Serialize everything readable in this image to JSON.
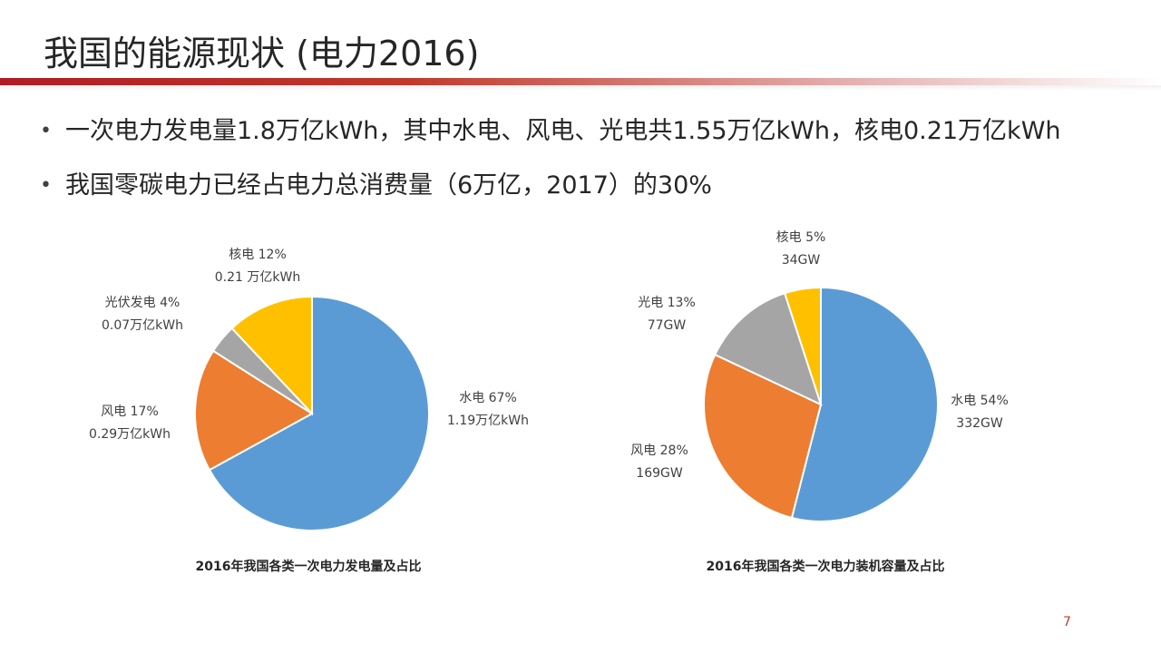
{
  "slide": {
    "title": "我国的能源现状 (电力2016)",
    "page_number": "7",
    "rule_color": "#b01c24"
  },
  "bullets": [
    "一次电力发电量1.8万亿kWh，其中水电、风电、光电共1.55万亿kWh，核电0.21万亿kWh",
    "我国零碳电力已经占电力总消费量（6万亿，2017）的30%"
  ],
  "chart_data": [
    {
      "type": "pie",
      "title": "2016年我国各类一次电力发电量及占比",
      "slices": [
        {
          "name": "水电",
          "percent_label": "67%",
          "value_label": "1.19万亿kWh",
          "value": 67,
          "color": "#5b9bd5"
        },
        {
          "name": "风电",
          "percent_label": "17%",
          "value_label": "0.29万亿kWh",
          "value": 17,
          "color": "#ed7d31"
        },
        {
          "name": "光伏发电",
          "percent_label": "4%",
          "value_label": "0.07万亿kWh",
          "value": 4,
          "color": "#a5a5a5"
        },
        {
          "name": "核电",
          "percent_label": "12%",
          "value_label": "0.21 万亿kWh",
          "value": 12,
          "color": "#ffc000"
        }
      ]
    },
    {
      "type": "pie",
      "title": "2016年我国各类一次电力装机容量及占比",
      "slices": [
        {
          "name": "水电",
          "percent_label": "54%",
          "value_label": "332GW",
          "value": 54,
          "color": "#5b9bd5"
        },
        {
          "name": "风电",
          "percent_label": "28%",
          "value_label": "169GW",
          "value": 28,
          "color": "#ed7d31"
        },
        {
          "name": "光电",
          "percent_label": "13%",
          "value_label": "77GW",
          "value": 13,
          "color": "#a5a5a5"
        },
        {
          "name": "核电",
          "percent_label": "5%",
          "value_label": "34GW",
          "value": 5,
          "color": "#ffc000"
        }
      ]
    }
  ]
}
